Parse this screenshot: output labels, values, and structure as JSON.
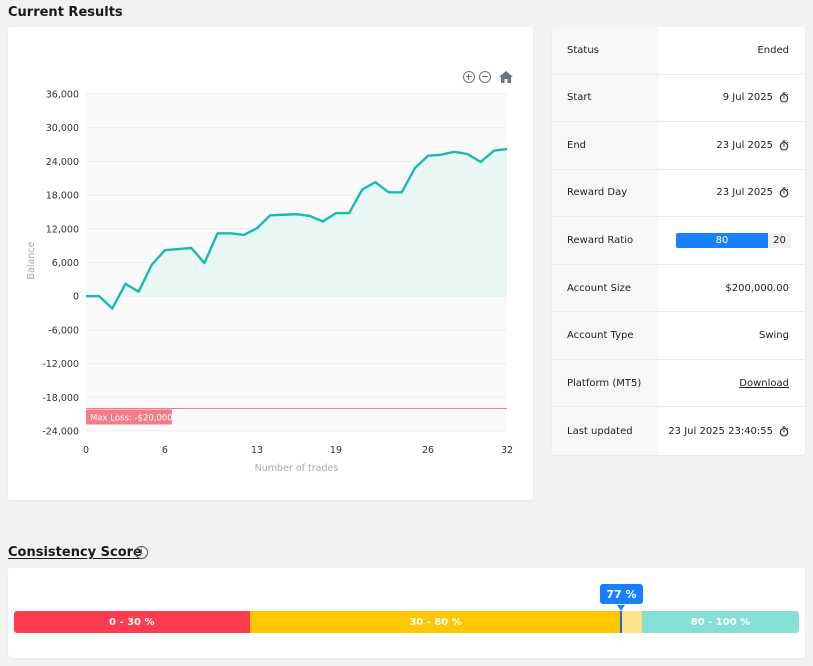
{
  "results": {
    "title": "Current Results"
  },
  "consistency": {
    "title": "Consistency Score",
    "info_icon": "info-icon",
    "score_label": "77 %",
    "score_value": 77,
    "segments": [
      {
        "label": "0 - 30 %",
        "color": "#ff3b4f"
      },
      {
        "label": "30 - 80 %",
        "color": "#ffc700"
      },
      {
        "label": "80 - 100 %",
        "color": "#86dfd5"
      }
    ]
  },
  "info": {
    "rows": [
      {
        "label": "Status",
        "value": "Ended",
        "icon": null
      },
      {
        "label": "Start",
        "value": "9 Jul 2025",
        "icon": "timer-icon"
      },
      {
        "label": "End",
        "value": "23 Jul 2025",
        "icon": "timer-icon"
      },
      {
        "label": "Reward Day",
        "value": "23 Jul 2025",
        "icon": "timer-icon"
      },
      {
        "label": "Reward Ratio",
        "ratio": [
          "80",
          "20"
        ]
      },
      {
        "label": "Account Size",
        "value": "$200,000.00",
        "icon": null
      },
      {
        "label": "Account Type",
        "value": "Swing",
        "icon": null
      },
      {
        "label": "Platform (MT5)",
        "link": "Download"
      },
      {
        "label": "Last updated",
        "value": "23 Jul 2025 23:40:55",
        "icon": "timer-icon"
      }
    ],
    "ratio_color": "#1a7fff"
  },
  "chart_data": {
    "type": "area",
    "title": "",
    "xlabel": "Number of trades",
    "ylabel": "Balance",
    "xlim": [
      0,
      32
    ],
    "ylim": [
      -24000,
      36000
    ],
    "x_ticks": [
      "0",
      "6",
      "13",
      "19",
      "26",
      "32"
    ],
    "x_tick_values": [
      0,
      6,
      13,
      19,
      26,
      32
    ],
    "y_ticks": [
      "36,000",
      "30,000",
      "24,000",
      "18,000",
      "12,000",
      "6,000",
      "0",
      "-6,000",
      "-12,000",
      "-18,000",
      "-24,000"
    ],
    "y_tick_values": [
      36000,
      30000,
      24000,
      18000,
      12000,
      6000,
      0,
      -6000,
      -12000,
      -18000,
      -24000
    ],
    "series": [
      {
        "x": [
          0,
          1,
          2,
          3,
          4,
          5,
          6,
          7,
          8,
          9,
          10,
          11,
          12,
          13,
          14,
          15,
          16,
          17,
          18,
          19,
          20,
          21,
          22,
          23,
          24,
          25,
          26,
          27,
          28,
          29,
          30,
          31,
          32
        ],
        "values": [
          0,
          0,
          -2200,
          2200,
          800,
          5600,
          8200,
          8400,
          8600,
          5900,
          11200,
          11200,
          10900,
          12100,
          14400,
          14500,
          14600,
          14300,
          13300,
          14800,
          14800,
          19000,
          20300,
          18500,
          18500,
          22800,
          25000,
          25200,
          25700,
          25300,
          23900,
          25900,
          26200
        ]
      }
    ],
    "threshold": {
      "value": -20000,
      "label": "Max Loss: -$20,000",
      "color": "#f47c86"
    },
    "line_color": "#17bca8",
    "fill_color": "#e9f7f4",
    "grid": true,
    "toolbar_icons": [
      "zoom-in-icon",
      "zoom-out-icon",
      "home-icon"
    ]
  }
}
